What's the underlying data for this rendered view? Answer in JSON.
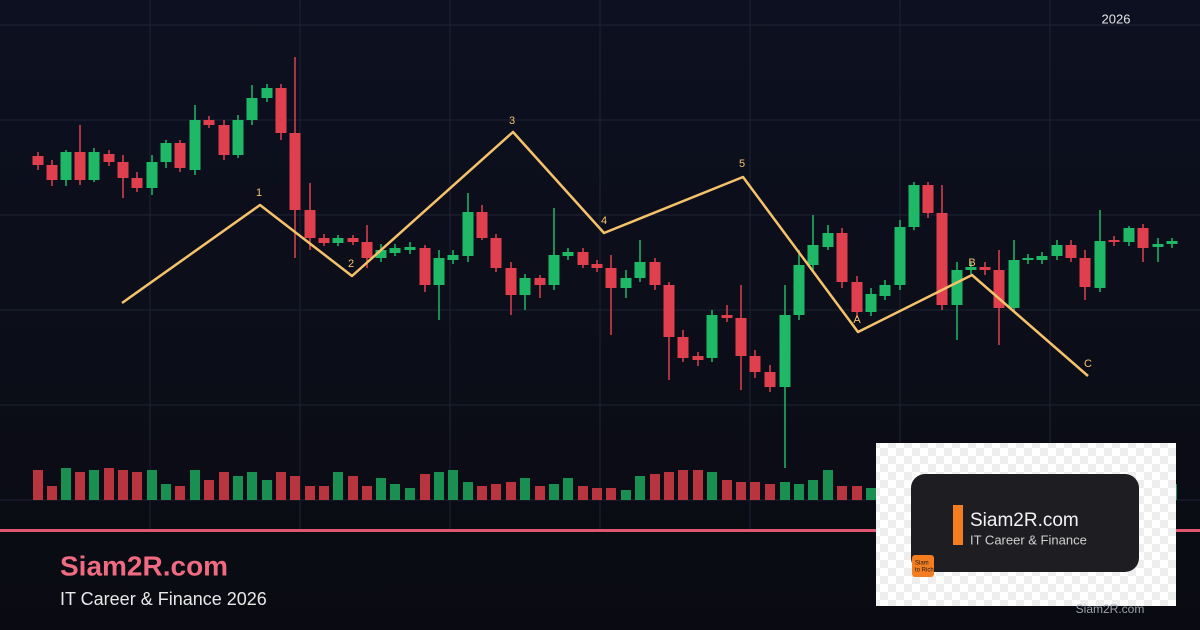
{
  "header": {
    "year": "2026"
  },
  "wave_labels": [
    "1",
    "2",
    "3",
    "4",
    "5",
    "A",
    "B",
    "C"
  ],
  "brand": {
    "name": "Siam2R.com",
    "tagline": "IT Career & Finance 2026"
  },
  "logo": {
    "name": "Siam2R.com",
    "tagline": "IT Career & Finance",
    "badge": [
      "Siam",
      "to Rich"
    ]
  },
  "watermark": "Siam2R.com"
}
